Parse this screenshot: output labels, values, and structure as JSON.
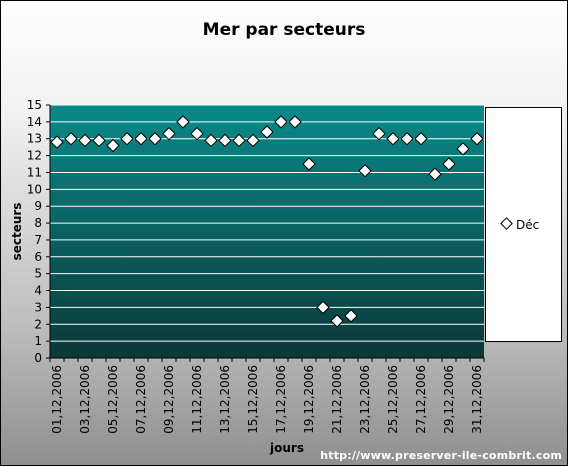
{
  "chart_data": {
    "type": "scatter",
    "title": "Mer par secteurs",
    "xlabel": "jours",
    "ylabel": "secteurs",
    "ylim": [
      0,
      15
    ],
    "yticks": [
      0,
      1,
      2,
      3,
      4,
      5,
      6,
      7,
      8,
      9,
      10,
      11,
      12,
      13,
      14,
      15
    ],
    "x": [
      "01,12,2006",
      "02,12,2006",
      "03,12,2006",
      "04,12,2006",
      "05,12,2006",
      "06,12,2006",
      "07,12,2006",
      "08,12,2006",
      "09,12,2006",
      "10,12,2006",
      "11,12,2006",
      "12,12,2006",
      "13,12,2006",
      "14,12,2006",
      "15,12,2006",
      "16,12,2006",
      "17,12,2006",
      "18,12,2006",
      "19,12,2006",
      "20,12,2006",
      "21,12,2006",
      "22,12,2006",
      "23,12,2006",
      "24,12,2006",
      "25,12,2006",
      "26,12,2006",
      "27,12,2006",
      "28,12,2006",
      "29,12,2006",
      "30,12,2006",
      "31,12,2006"
    ],
    "xtick_labels": [
      "01,12,2006",
      "03,12,2006",
      "05,12,2006",
      "07,12,2006",
      "09,12,2006",
      "11,12,2006",
      "13,12,2006",
      "15,12,2006",
      "17,12,2006",
      "19,12,2006",
      "21,12,2006",
      "23,12,2006",
      "25,12,2006",
      "27,12,2006",
      "29,12,2006",
      "31,12,2006"
    ],
    "series": [
      {
        "name": "Déc",
        "values": [
          12.8,
          13.0,
          12.9,
          12.9,
          12.6,
          13.0,
          13.0,
          13.0,
          13.3,
          14.0,
          13.3,
          12.9,
          12.9,
          12.9,
          12.9,
          13.4,
          14.0,
          14.0,
          11.5,
          3.0,
          2.2,
          2.5,
          11.1,
          13.3,
          13.0,
          13.0,
          13.0,
          10.9,
          11.5,
          12.4,
          13.0
        ]
      }
    ],
    "legend_position": "right",
    "grid": true,
    "colors": {
      "plot_top": "#0a8a8a",
      "plot_bottom": "#0b3838",
      "gridline": "#ffffff",
      "marker_fill": "#ffffff",
      "marker_stroke": "#000000"
    }
  },
  "footer": {
    "url": "http://www.preserver-ile-combrit.com"
  }
}
